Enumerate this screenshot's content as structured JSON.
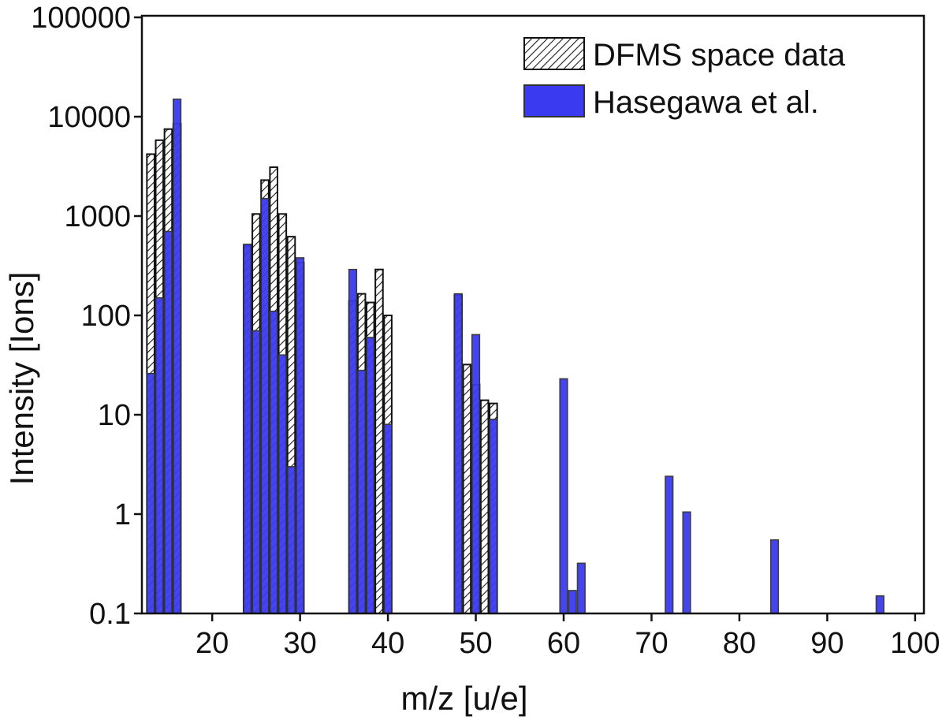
{
  "chart_data": {
    "type": "bar",
    "xlabel": "m/z [u/e]",
    "ylabel": "Intensity [Ions]",
    "yscale": "log",
    "xlim": [
      12,
      101
    ],
    "ylim": [
      0.1,
      100000
    ],
    "xticks": [
      20,
      30,
      40,
      50,
      60,
      70,
      80,
      90,
      100
    ],
    "yticks": [
      0.1,
      1,
      10,
      100,
      1000,
      10000,
      100000
    ],
    "ytick_labels": [
      "0.1",
      "1",
      "10",
      "100",
      "1000",
      "10000",
      "100000"
    ],
    "legend_position": "top-right",
    "grid": false,
    "colors": {
      "hasegawa_fill": "#3a3af0",
      "dfms_fill": "#ffffff",
      "dfms_hatch": "#1a1a1a",
      "outline": "#333333"
    },
    "series": [
      {
        "name": "DFMS space data",
        "pattern": "hatched",
        "points": [
          {
            "x": 13,
            "y": 4200
          },
          {
            "x": 14,
            "y": 5800
          },
          {
            "x": 15,
            "y": 7500
          },
          {
            "x": 16,
            "y": 8500
          },
          {
            "x": 24,
            "y": 500
          },
          {
            "x": 25,
            "y": 1050
          },
          {
            "x": 26,
            "y": 2300
          },
          {
            "x": 27,
            "y": 3100
          },
          {
            "x": 28,
            "y": 1050
          },
          {
            "x": 29,
            "y": 620
          },
          {
            "x": 30,
            "y": 340
          },
          {
            "x": 36,
            "y": 140
          },
          {
            "x": 37,
            "y": 165
          },
          {
            "x": 38,
            "y": 135
          },
          {
            "x": 39,
            "y": 290
          },
          {
            "x": 40,
            "y": 100
          },
          {
            "x": 48,
            "y": 160
          },
          {
            "x": 49,
            "y": 32
          },
          {
            "x": 50,
            "y": 20
          },
          {
            "x": 51,
            "y": 14
          },
          {
            "x": 52,
            "y": 13
          }
        ]
      },
      {
        "name": "Hasegawa et al.",
        "pattern": "solid",
        "points": [
          {
            "x": 13,
            "y": 26
          },
          {
            "x": 14,
            "y": 150
          },
          {
            "x": 15,
            "y": 700
          },
          {
            "x": 16,
            "y": 15000
          },
          {
            "x": 24,
            "y": 520
          },
          {
            "x": 25,
            "y": 70
          },
          {
            "x": 26,
            "y": 1500
          },
          {
            "x": 27,
            "y": 110
          },
          {
            "x": 28,
            "y": 40
          },
          {
            "x": 29,
            "y": 3
          },
          {
            "x": 30,
            "y": 380
          },
          {
            "x": 36,
            "y": 290
          },
          {
            "x": 37,
            "y": 28
          },
          {
            "x": 38,
            "y": 60
          },
          {
            "x": 40,
            "y": 8
          },
          {
            "x": 48,
            "y": 165
          },
          {
            "x": 50,
            "y": 64
          },
          {
            "x": 52,
            "y": 9
          },
          {
            "x": 60,
            "y": 23
          },
          {
            "x": 61,
            "y": 0.17
          },
          {
            "x": 62,
            "y": 0.32
          },
          {
            "x": 72,
            "y": 2.4
          },
          {
            "x": 74,
            "y": 1.05
          },
          {
            "x": 84,
            "y": 0.55
          },
          {
            "x": 96,
            "y": 0.15
          }
        ]
      }
    ]
  }
}
